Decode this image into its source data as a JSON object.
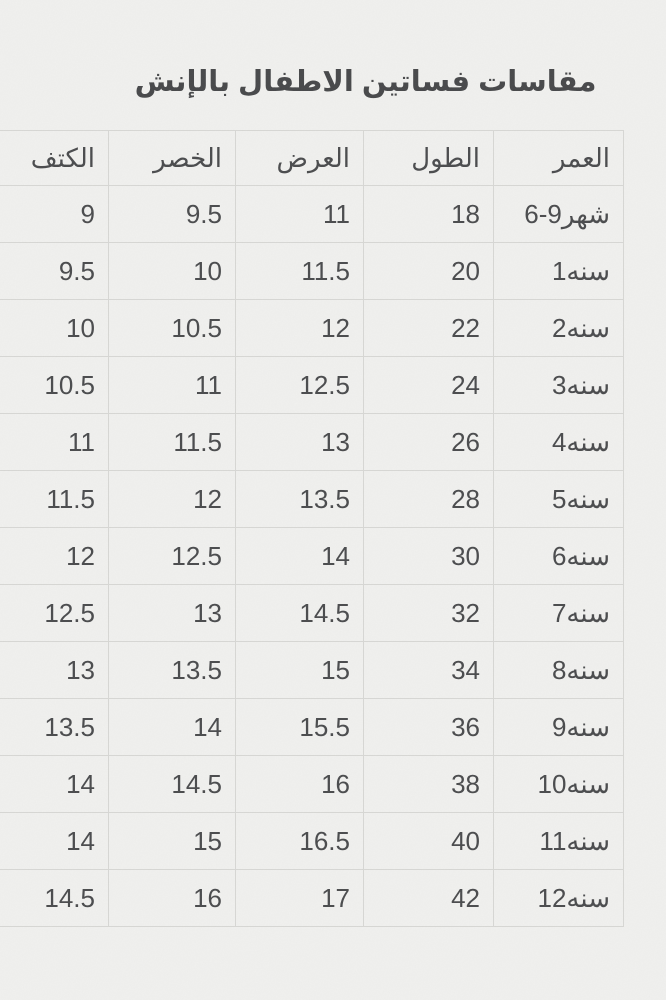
{
  "title": "مقاسات فساتين الاطفال بالإنش",
  "table": {
    "columns": [
      {
        "key": "age",
        "label": "العمر"
      },
      {
        "key": "length",
        "label": "الطول"
      },
      {
        "key": "width",
        "label": "العرض"
      },
      {
        "key": "waist",
        "label": "الخصر"
      },
      {
        "key": "shoulder",
        "label": "الكتف"
      }
    ],
    "rows": [
      {
        "age": "6-9شهر",
        "length": "18",
        "width": "11",
        "waist": "9.5",
        "shoulder": "9"
      },
      {
        "age": "1سنه",
        "length": "20",
        "width": "11.5",
        "waist": "10",
        "shoulder": "9.5"
      },
      {
        "age": "2سنه",
        "length": "22",
        "width": "12",
        "waist": "10.5",
        "shoulder": "10"
      },
      {
        "age": "3سنه",
        "length": "24",
        "width": "12.5",
        "waist": "11",
        "shoulder": "10.5"
      },
      {
        "age": "4سنه",
        "length": "26",
        "width": "13",
        "waist": "11.5",
        "shoulder": "11"
      },
      {
        "age": "5سنه",
        "length": "28",
        "width": "13.5",
        "waist": "12",
        "shoulder": "11.5"
      },
      {
        "age": "6سنه",
        "length": "30",
        "width": "14",
        "waist": "12.5",
        "shoulder": "12"
      },
      {
        "age": "7سنه",
        "length": "32",
        "width": "14.5",
        "waist": "13",
        "shoulder": "12.5"
      },
      {
        "age": "8سنه",
        "length": "34",
        "width": "15",
        "waist": "13.5",
        "shoulder": "13"
      },
      {
        "age": "9سنه",
        "length": "36",
        "width": "15.5",
        "waist": "14",
        "shoulder": "13.5"
      },
      {
        "age": "10سنه",
        "length": "38",
        "width": "16",
        "waist": "14.5",
        "shoulder": "14"
      },
      {
        "age": "11سنه",
        "length": "40",
        "width": "16.5",
        "waist": "15",
        "shoulder": "14"
      },
      {
        "age": "12سنه",
        "length": "42",
        "width": "17",
        "waist": "16",
        "shoulder": "14.5"
      }
    ]
  },
  "colors": {
    "background": "#f0f0ee",
    "gridline": "#d7d7d4",
    "text": "#4a4b4d",
    "title_text": "#47484a"
  }
}
